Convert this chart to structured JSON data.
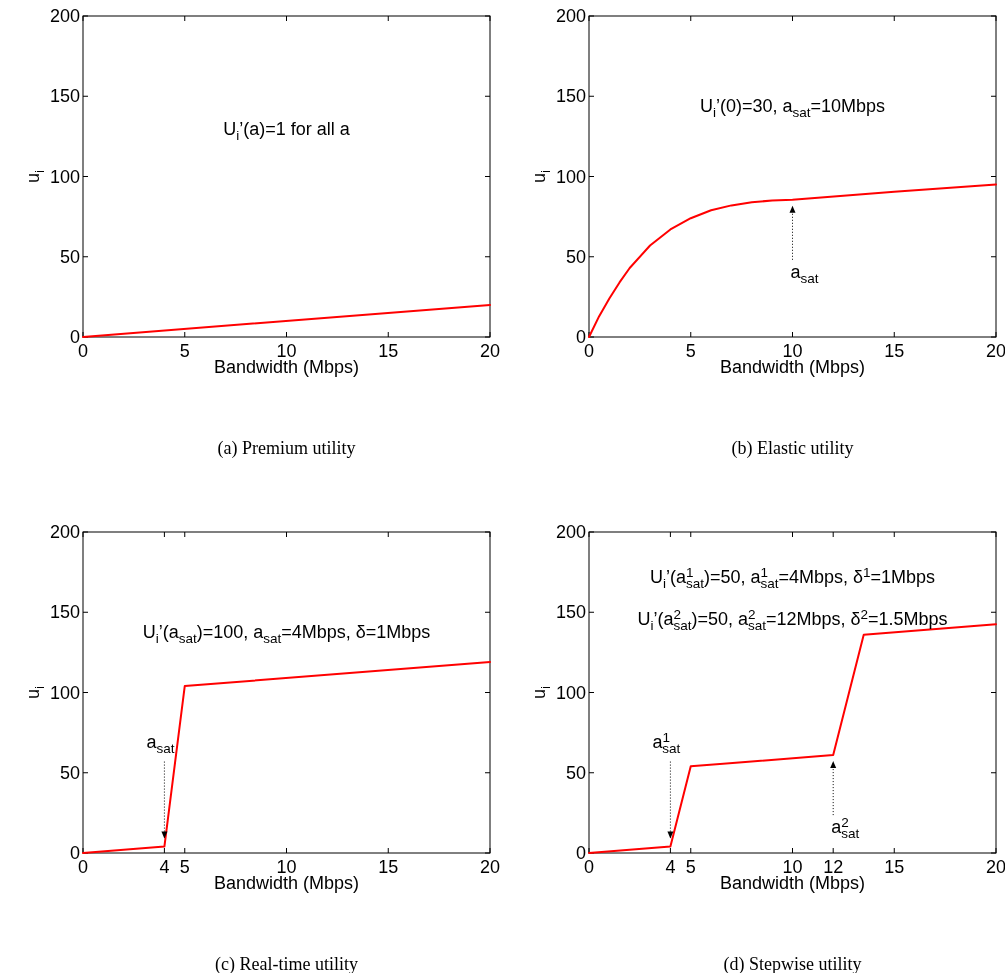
{
  "chart_data": [
    {
      "type": "line",
      "title": "(a) Premium utility",
      "xlabel": "Bandwidth (Mbps)",
      "ylabel": "u$_{i}$",
      "xlim": [
        0,
        20
      ],
      "xticks": [
        0,
        5,
        10,
        15,
        20
      ],
      "ylim": [
        0,
        200
      ],
      "yticks": [
        0,
        50,
        100,
        150,
        200
      ],
      "annotations": [
        "U$_{i}$’(a)=1 for all a"
      ],
      "series": [
        {
          "color": "#ff0000",
          "x": [
            0,
            20
          ],
          "values": [
            0,
            20
          ]
        }
      ]
    },
    {
      "type": "line",
      "title": "(b) Elastic utility",
      "xlabel": "Bandwidth (Mbps)",
      "ylabel": "u$_{i}$",
      "xlim": [
        0,
        20
      ],
      "xticks": [
        0,
        5,
        10,
        15,
        20
      ],
      "ylim": [
        0,
        200
      ],
      "yticks": [
        0,
        50,
        100,
        150,
        200
      ],
      "annotations": [
        "U$_{i}$’(0)=30, a$_{sat}$=10Mbps",
        {
          "text": "a$_{sat}$",
          "x": 10,
          "y": 85.5
        }
      ],
      "series": [
        {
          "color": "#ff0000",
          "x": [
            0,
            0.5,
            1,
            1.5,
            2,
            3,
            4,
            5,
            6,
            7,
            8,
            9,
            10,
            15,
            20
          ],
          "values": [
            0,
            13,
            24,
            34,
            43,
            57,
            67,
            74,
            79,
            82,
            84,
            85,
            85.5,
            90.5,
            95
          ]
        }
      ]
    },
    {
      "type": "line",
      "title": "(c) Real-time utility",
      "xlabel": "Bandwidth (Mbps)",
      "ylabel": "u$_{i}$",
      "xlim": [
        0,
        20
      ],
      "xticks": [
        0,
        4,
        5,
        10,
        15,
        20
      ],
      "ylim": [
        0,
        200
      ],
      "yticks": [
        0,
        50,
        100,
        150,
        200
      ],
      "annotations": [
        "U$_{i}$’(a$_{sat}$)=100, a$_{sat}$=4Mbps, δ=1Mbps",
        {
          "text": "a$_{sat}$",
          "x": 4,
          "y": 4
        }
      ],
      "series": [
        {
          "color": "#ff0000",
          "x": [
            0,
            4,
            5,
            20
          ],
          "values": [
            0,
            4,
            104,
            119
          ]
        }
      ]
    },
    {
      "type": "line",
      "title": "(d) Stepwise utility",
      "xlabel": "Bandwidth (Mbps)",
      "ylabel": "u$_{i}$",
      "xlim": [
        0,
        20
      ],
      "xticks": [
        0,
        4,
        5,
        10,
        12,
        15,
        20
      ],
      "ylim": [
        0,
        200
      ],
      "yticks": [
        0,
        50,
        100,
        150,
        200
      ],
      "annotations": [
        "U$_{i}$’(a$^{1}$$_{sat}$)=50, a$^{1}$$_{sat}$=4Mbps, δ$^{1}$=1Mbps",
        "U$_{i}$’(a$^{2}$$_{sat}$)=50, a$^{2}$$_{sat}$=12Mbps, δ$^{2}$=1.5Mbps",
        {
          "text": "a$^{1}$$_{sat}$",
          "x": 4,
          "y": 4
        },
        {
          "text": "a$^{2}$$_{sat}$",
          "x": 12,
          "y": 61
        }
      ],
      "series": [
        {
          "color": "#ff0000",
          "x": [
            0,
            4,
            5,
            12,
            13.5,
            20
          ],
          "values": [
            0,
            4,
            54,
            61,
            136,
            142.5
          ]
        }
      ]
    }
  ]
}
